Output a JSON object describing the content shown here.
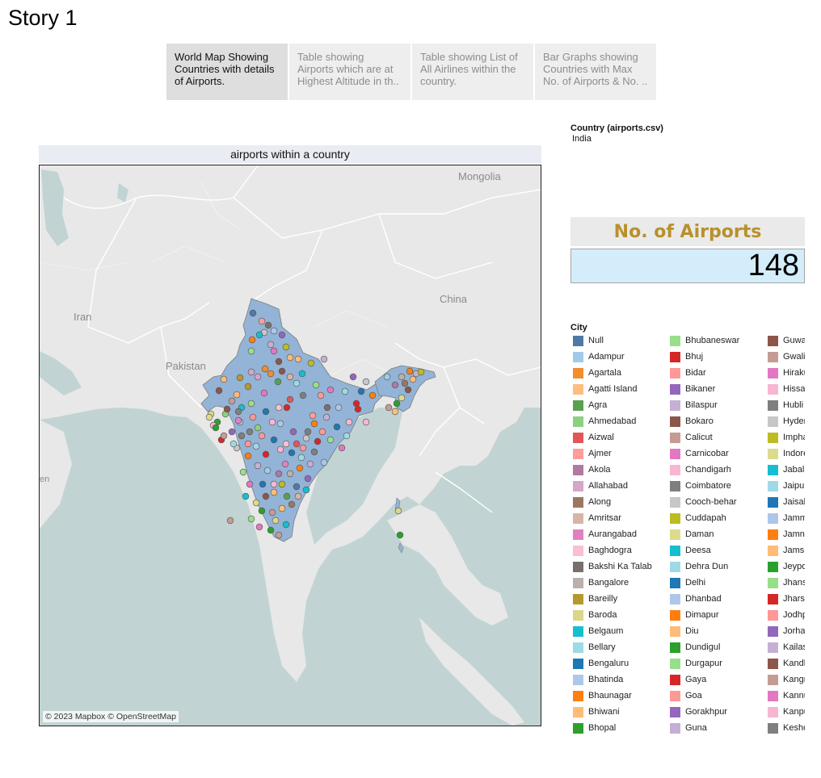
{
  "story": {
    "title": "Story 1"
  },
  "tabs": [
    {
      "label": "World Map Showing Countries with details of Airports.",
      "active": true
    },
    {
      "label": "Table showing Airports which are at Highest Altitude in th..",
      "active": false
    },
    {
      "label": "Table showing List of All Airlines within the country.",
      "active": false
    },
    {
      "label": "Bar Graphs showing Countries with Max No. of Airports & No. ..",
      "active": false
    }
  ],
  "map": {
    "title": "airports within a country",
    "attribution": "© 2023 Mapbox © OpenStreetMap",
    "place_labels": [
      "Mongolia",
      "Iran",
      "China",
      "Pakistan",
      "India",
      "en"
    ],
    "colors": {
      "water": "#c1d4d3",
      "land": "#e8e8e8",
      "highlight": "#93b4d6",
      "border": "#ffffff"
    }
  },
  "filter": {
    "label": "Country (airports.csv)",
    "value": "India"
  },
  "kpi": {
    "title": "No. of Airports",
    "value": "148"
  },
  "legend": {
    "title": "City",
    "columns": [
      [
        {
          "name": "Null",
          "color": "#4e79a7"
        },
        {
          "name": "Adampur",
          "color": "#a0cbe8"
        },
        {
          "name": "Agartala",
          "color": "#f28e2b"
        },
        {
          "name": "Agatti Island",
          "color": "#ffbe7d"
        },
        {
          "name": "Agra",
          "color": "#59a14f"
        },
        {
          "name": "Ahmedabad",
          "color": "#8cd17d"
        },
        {
          "name": "Aizwal",
          "color": "#e15759"
        },
        {
          "name": "Ajmer",
          "color": "#ff9d9a"
        },
        {
          "name": "Akola",
          "color": "#b07aa1"
        },
        {
          "name": "Allahabad",
          "color": "#d4a6c8"
        },
        {
          "name": "Along",
          "color": "#9d7660"
        },
        {
          "name": "Amritsar",
          "color": "#d7b5a6"
        },
        {
          "name": "Aurangabad",
          "color": "#e082c0"
        },
        {
          "name": "Baghdogra",
          "color": "#fabfd2"
        },
        {
          "name": "Bakshi Ka Talab",
          "color": "#79706e"
        },
        {
          "name": "Bangalore",
          "color": "#bab0ac"
        },
        {
          "name": "Bareilly",
          "color": "#b6992d"
        },
        {
          "name": "Baroda",
          "color": "#dbd68b"
        },
        {
          "name": "Belgaum",
          "color": "#17becf"
        },
        {
          "name": "Bellary",
          "color": "#9edae5"
        },
        {
          "name": "Bengaluru",
          "color": "#1f77b4"
        },
        {
          "name": "Bhatinda",
          "color": "#aec7e8"
        },
        {
          "name": "Bhaunagar",
          "color": "#ff7f0e"
        },
        {
          "name": "Bhiwani",
          "color": "#ffbb78"
        },
        {
          "name": "Bhopal",
          "color": "#2ca02c"
        }
      ],
      [
        {
          "name": "Bhubaneswar",
          "color": "#98df8a"
        },
        {
          "name": "Bhuj",
          "color": "#d62728"
        },
        {
          "name": "Bidar",
          "color": "#ff9896"
        },
        {
          "name": "Bikaner",
          "color": "#9467bd"
        },
        {
          "name": "Bilaspur",
          "color": "#c5b0d5"
        },
        {
          "name": "Bokaro",
          "color": "#8c564b"
        },
        {
          "name": "Calicut",
          "color": "#c49c94"
        },
        {
          "name": "Carnicobar",
          "color": "#e377c2"
        },
        {
          "name": "Chandigarh",
          "color": "#f7b6d2"
        },
        {
          "name": "Coimbatore",
          "color": "#7f7f7f"
        },
        {
          "name": "Cooch-behar",
          "color": "#c7c7c7"
        },
        {
          "name": "Cuddapah",
          "color": "#bcbd22"
        },
        {
          "name": "Daman",
          "color": "#dbdb8d"
        },
        {
          "name": "Deesa",
          "color": "#17becf"
        },
        {
          "name": "Dehra Dun",
          "color": "#9edae5"
        },
        {
          "name": "Delhi",
          "color": "#1f77b4"
        },
        {
          "name": "Dhanbad",
          "color": "#aec7e8"
        },
        {
          "name": "Dimapur",
          "color": "#ff7f0e"
        },
        {
          "name": "Diu",
          "color": "#ffbb78"
        },
        {
          "name": "Dundigul",
          "color": "#2ca02c"
        },
        {
          "name": "Durgapur",
          "color": "#98df8a"
        },
        {
          "name": "Gaya",
          "color": "#d62728"
        },
        {
          "name": "Goa",
          "color": "#ff9896"
        },
        {
          "name": "Gorakhpur",
          "color": "#9467bd"
        },
        {
          "name": "Guna",
          "color": "#c5b0d5"
        }
      ],
      [
        {
          "name": "Guwahati",
          "color": "#8c564b"
        },
        {
          "name": "Gwalior",
          "color": "#c49c94"
        },
        {
          "name": "Hirakud",
          "color": "#e377c2"
        },
        {
          "name": "Hissar",
          "color": "#f7b6d2"
        },
        {
          "name": "Hubli",
          "color": "#7f7f7f"
        },
        {
          "name": "Hyderabad",
          "color": "#c7c7c7"
        },
        {
          "name": "Imphal",
          "color": "#bcbd22"
        },
        {
          "name": "Indore",
          "color": "#dbdb8d"
        },
        {
          "name": "Jabalpur",
          "color": "#17becf"
        },
        {
          "name": "Jaipur",
          "color": "#9edae5"
        },
        {
          "name": "Jaisalmer",
          "color": "#1f77b4"
        },
        {
          "name": "Jammu",
          "color": "#aec7e8"
        },
        {
          "name": "Jamnagar",
          "color": "#ff7f0e"
        },
        {
          "name": "Jamshedpur",
          "color": "#ffbb78"
        },
        {
          "name": "Jeypore",
          "color": "#2ca02c"
        },
        {
          "name": "Jhansi",
          "color": "#98df8a"
        },
        {
          "name": "Jharsuguda",
          "color": "#d62728"
        },
        {
          "name": "Jodhpur",
          "color": "#ff9896"
        },
        {
          "name": "Jorhat",
          "color": "#9467bd"
        },
        {
          "name": "Kailashahar",
          "color": "#c5b0d5"
        },
        {
          "name": "Kandla",
          "color": "#8c564b"
        },
        {
          "name": "Kangra",
          "color": "#c49c94"
        },
        {
          "name": "Kannur",
          "color": "#e377c2"
        },
        {
          "name": "Kanpur",
          "color": "#f7b6d2"
        },
        {
          "name": "Keshod",
          "color": "#7f7f7f"
        }
      ]
    ]
  }
}
